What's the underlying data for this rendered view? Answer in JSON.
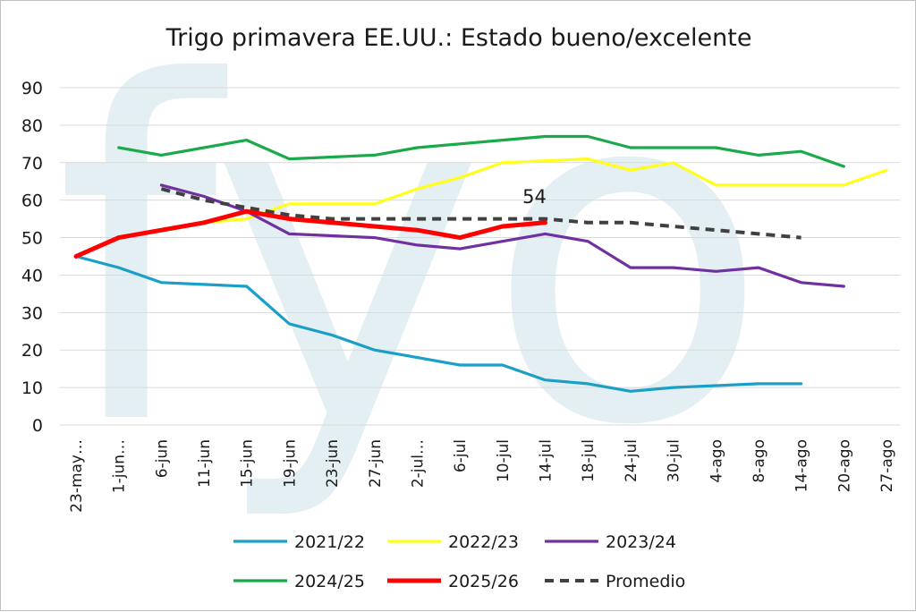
{
  "chart_data": {
    "type": "line",
    "title": "Trigo primavera EE.UU.: Estado bueno/excelente",
    "xlabel": "",
    "ylabel": "",
    "ylim": [
      0,
      90
    ],
    "yticks": [
      0,
      10,
      20,
      30,
      40,
      50,
      60,
      70,
      80,
      90
    ],
    "grid": true,
    "legend_position": "bottom",
    "watermark": "fyo",
    "categories": [
      "23-may…",
      "1-jun…",
      "6-jun",
      "11-jun",
      "15-jun",
      "19-jun",
      "23-jun",
      "27-jun",
      "2-jul…",
      "6-jul",
      "10-jul",
      "14-jul",
      "18-jul",
      "24-jul",
      "30-jul",
      "4-ago",
      "8-ago",
      "14-ago",
      "20-ago",
      "27-ago"
    ],
    "series": [
      {
        "name": "2021/22",
        "color": "#1a9fc7",
        "dash": false,
        "values": [
          45,
          42,
          38,
          37.5,
          37,
          27,
          24,
          20,
          18,
          16,
          16,
          12,
          11,
          9,
          10,
          10.5,
          11,
          11,
          null,
          null
        ]
      },
      {
        "name": "2022/23",
        "color": "#ffff1a",
        "dash": false,
        "values": [
          null,
          null,
          null,
          54,
          55,
          59,
          59,
          59,
          63,
          66,
          70,
          70.5,
          71,
          68,
          70,
          64,
          64,
          64,
          64,
          68
        ]
      },
      {
        "name": "2023/24",
        "color": "#7030a0",
        "dash": false,
        "values": [
          null,
          null,
          64,
          61,
          57,
          51,
          50.5,
          50,
          48,
          47,
          49,
          51,
          49,
          42,
          42,
          41,
          42,
          38,
          37,
          null
        ]
      },
      {
        "name": "2024/25",
        "color": "#1aaa4a",
        "dash": false,
        "values": [
          null,
          74,
          72,
          74,
          76,
          71,
          71.5,
          72,
          74,
          75,
          76,
          77,
          77,
          74,
          74,
          74,
          72,
          73,
          69,
          null
        ]
      },
      {
        "name": "2025/26",
        "color": "#ff0000",
        "dash": false,
        "values": [
          45,
          50,
          52,
          54,
          57,
          55,
          54,
          53,
          52,
          50,
          53,
          54,
          null,
          null,
          null,
          null,
          null,
          null,
          null,
          null
        ]
      },
      {
        "name": "Promedio",
        "color": "#404040",
        "dash": true,
        "values": [
          null,
          null,
          63,
          60,
          58,
          56,
          55,
          55,
          55,
          55,
          55,
          55,
          54,
          54,
          53,
          52,
          51,
          50,
          null,
          null
        ]
      }
    ],
    "annotations": [
      {
        "text": "54",
        "series": "2025/26",
        "index": 11
      }
    ]
  }
}
